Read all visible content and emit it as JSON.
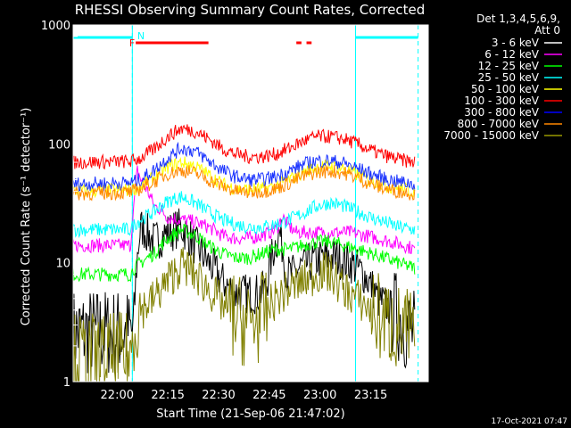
{
  "chart_data": {
    "type": "line",
    "title": "RHESSI Observing Summary Count Rates, Corrected",
    "xlabel": "Start Time (21-Sep-06 21:47:02)",
    "ylabel": "Corrected Count Rate (s⁻¹ detector⁻¹)",
    "y_scale": "log",
    "ylim": [
      1,
      1000
    ],
    "xlim_min": [
      0,
      105
    ],
    "y_ticks": [
      "1",
      "10",
      "100",
      "1000"
    ],
    "x_ticks": [
      {
        "label": "22:00",
        "t": 13
      },
      {
        "label": "22:15",
        "t": 28
      },
      {
        "label": "22:30",
        "t": 43
      },
      {
        "label": "22:45",
        "t": 58
      },
      {
        "label": "23:00",
        "t": 73
      },
      {
        "label": "23:15",
        "t": 88
      }
    ],
    "legend_header": [
      "Det 1,3,4,5,6,9,",
      "Att 0"
    ],
    "footer": "17-Oct-2021 07:47",
    "flags": {
      "N_label": "N",
      "F_label": "F",
      "night_color": "#00ffff",
      "flare_color": "#ff0000",
      "night_top_segments": [
        [
          0,
          17.5
        ],
        [
          83.5,
          102
        ]
      ],
      "day_boundaries": [
        17.5,
        83.5
      ],
      "flare_segments": [
        [
          18.5,
          40
        ],
        [
          66,
          67.5
        ],
        [
          69,
          70.5
        ]
      ]
    },
    "series": [
      {
        "name": "3 - 6 keV",
        "color": "#ffffff",
        "plot_color": "#000000",
        "x": [
          0,
          17,
          18,
          20,
          24,
          28,
          32,
          36,
          40,
          44,
          48,
          52,
          55,
          57,
          59,
          61,
          63,
          65,
          67,
          70,
          74,
          78,
          82,
          86,
          90,
          94,
          98,
          101
        ],
        "y": [
          2.6,
          2.6,
          2.6,
          20,
          15,
          18,
          20,
          14,
          10,
          7,
          5.5,
          5.5,
          5.5,
          6,
          12,
          18,
          8,
          8,
          9,
          10,
          11,
          11,
          10,
          8,
          5,
          4,
          3,
          2.5
        ]
      },
      {
        "name": "6 - 12 keV",
        "color": "#ff00ff",
        "x": [
          0,
          17,
          18,
          19,
          20,
          22,
          24,
          26,
          28,
          32,
          36,
          40,
          44,
          48,
          52,
          56,
          60,
          62,
          64,
          66,
          70,
          74,
          78,
          82,
          86,
          90,
          94,
          98,
          101
        ],
        "y": [
          14,
          14,
          30,
          60,
          50,
          40,
          30,
          28,
          24,
          23,
          22,
          20,
          17,
          16,
          16,
          17,
          19,
          24,
          20,
          18,
          18,
          18,
          18,
          18,
          17,
          16,
          15,
          14,
          13
        ]
      },
      {
        "name": "12 - 25 keV",
        "color": "#00ff00",
        "x": [
          0,
          17,
          18,
          20,
          24,
          28,
          32,
          36,
          40,
          44,
          48,
          52,
          56,
          60,
          64,
          68,
          72,
          76,
          80,
          84,
          88,
          92,
          96,
          101
        ],
        "y": [
          8,
          8,
          9,
          10,
          12,
          16,
          19,
          17,
          14,
          12,
          11,
          11,
          12,
          13,
          13,
          14,
          15,
          15,
          14,
          13,
          12,
          11,
          10,
          9
        ]
      },
      {
        "name": "25 - 50 keV",
        "color": "#00ffff",
        "x": [
          0,
          17,
          18,
          20,
          24,
          28,
          32,
          36,
          40,
          44,
          48,
          52,
          56,
          60,
          64,
          68,
          72,
          76,
          80,
          84,
          88,
          92,
          96,
          101
        ],
        "y": [
          19,
          19,
          21,
          23,
          27,
          33,
          36,
          32,
          27,
          23,
          21,
          20,
          20,
          21,
          23,
          26,
          30,
          32,
          30,
          27,
          24,
          22,
          20,
          19
        ]
      },
      {
        "name": "50 - 100 keV",
        "color": "#ffff00",
        "x": [
          0,
          17,
          20,
          24,
          28,
          32,
          36,
          40,
          44,
          48,
          52,
          56,
          60,
          64,
          68,
          72,
          76,
          80,
          84,
          88,
          92,
          96,
          101
        ],
        "y": [
          40,
          41,
          44,
          52,
          64,
          70,
          65,
          55,
          46,
          42,
          41,
          42,
          44,
          50,
          58,
          64,
          65,
          62,
          55,
          49,
          45,
          42,
          40
        ]
      },
      {
        "name": "100 - 300 keV",
        "color": "#ff0000",
        "x": [
          0,
          17,
          20,
          24,
          28,
          32,
          36,
          40,
          44,
          48,
          52,
          56,
          60,
          64,
          68,
          72,
          76,
          80,
          84,
          88,
          92,
          96,
          101
        ],
        "y": [
          70,
          71,
          76,
          90,
          115,
          135,
          128,
          110,
          92,
          82,
          78,
          78,
          82,
          92,
          105,
          115,
          115,
          110,
          100,
          88,
          80,
          74,
          70
        ]
      },
      {
        "name": "300 - 800 keV",
        "color": "#0000ff",
        "plot_color": "#1a33ff",
        "x": [
          0,
          17,
          20,
          24,
          28,
          32,
          36,
          40,
          44,
          48,
          52,
          56,
          60,
          64,
          68,
          72,
          76,
          80,
          84,
          88,
          92,
          96,
          101
        ],
        "y": [
          46,
          47,
          50,
          60,
          76,
          92,
          87,
          72,
          60,
          53,
          50,
          50,
          53,
          59,
          67,
          72,
          72,
          69,
          62,
          56,
          51,
          48,
          46
        ]
      },
      {
        "name": "800 - 7000 keV",
        "color": "#ff8800",
        "x": [
          0,
          17,
          20,
          24,
          28,
          32,
          36,
          40,
          44,
          48,
          52,
          56,
          60,
          64,
          68,
          72,
          76,
          80,
          84,
          88,
          92,
          96,
          101
        ],
        "y": [
          38,
          39,
          42,
          48,
          56,
          60,
          57,
          50,
          44,
          40,
          39,
          40,
          42,
          47,
          53,
          58,
          59,
          57,
          52,
          46,
          42,
          40,
          38
        ]
      },
      {
        "name": "7000 - 15000 keV",
        "color": "#999900",
        "plot_color": "#808000",
        "x": [
          0,
          17,
          18,
          20,
          24,
          28,
          32,
          34,
          36,
          40,
          44,
          48,
          52,
          56,
          60,
          64,
          68,
          72,
          74,
          76,
          80,
          84,
          88,
          92,
          96,
          101
        ],
        "y": [
          1.6,
          1.6,
          2.8,
          4,
          5,
          7,
          9.5,
          9,
          8,
          6,
          4.5,
          3.5,
          3,
          3.5,
          5,
          6,
          7,
          8,
          8.5,
          8,
          6,
          5,
          4,
          3.2,
          2.8,
          2.5
        ]
      }
    ]
  }
}
